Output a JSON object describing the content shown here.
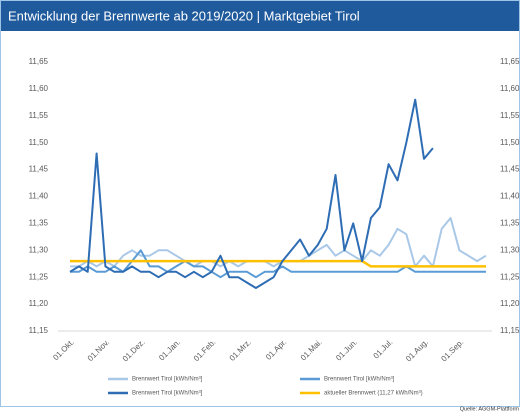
{
  "chart_data": {
    "type": "line",
    "title": "Entwicklung der Brennwerte ab 2019/2020 | Marktgebiet Tirol",
    "source": "Quelle: AGGM-Plattform",
    "categories": [
      "01.Okt.",
      null,
      null,
      null,
      "01.Nov.",
      null,
      null,
      null,
      "01.Dez.",
      null,
      null,
      null,
      "01.Jan.",
      null,
      null,
      null,
      "01.Feb.",
      null,
      null,
      null,
      "01.Mrz.",
      null,
      null,
      null,
      "01.Apr.",
      null,
      null,
      null,
      "01.Mai.",
      null,
      null,
      null,
      "01.Jun.",
      null,
      null,
      null,
      "01.Jul.",
      null,
      null,
      null,
      "01.Aug.",
      null,
      null,
      null,
      "01.Sep.",
      null,
      null,
      null
    ],
    "series": [
      {
        "name": "Brennwert Tirol [kWh/Nm³]",
        "color": "#a9c8e8",
        "values": [
          11.27,
          11.27,
          11.28,
          11.27,
          11.28,
          11.27,
          11.29,
          11.3,
          11.29,
          11.29,
          11.3,
          11.3,
          11.29,
          11.28,
          11.27,
          11.28,
          11.28,
          11.27,
          11.28,
          11.27,
          11.28,
          11.28,
          11.28,
          11.27,
          11.28,
          11.28,
          11.28,
          11.29,
          11.3,
          11.31,
          11.29,
          11.3,
          11.29,
          11.28,
          11.3,
          11.29,
          11.31,
          11.34,
          11.33,
          11.27,
          11.29,
          11.27,
          11.34,
          11.36,
          11.3,
          11.29,
          11.28,
          11.29
        ]
      },
      {
        "name": "Brennwert Tirol [kWh/Nm³]",
        "color": "#5b9bd5",
        "values": [
          11.26,
          11.26,
          11.27,
          11.26,
          11.26,
          11.27,
          11.26,
          11.28,
          11.3,
          11.27,
          11.27,
          11.26,
          11.27,
          11.28,
          11.27,
          11.27,
          11.26,
          11.25,
          11.26,
          11.26,
          11.26,
          11.25,
          11.26,
          11.26,
          11.27,
          11.26,
          11.26,
          11.26,
          11.26,
          11.26,
          11.26,
          11.26,
          11.26,
          11.26,
          11.26,
          11.26,
          11.26,
          11.26,
          11.27,
          11.26,
          11.26,
          11.26,
          11.26,
          11.26,
          11.26,
          11.26,
          11.26,
          11.26
        ]
      },
      {
        "name": "aktueller Brennwert (11,27 kWh/Nm³)",
        "color": "#ffc000",
        "values": [
          11.28,
          11.28,
          11.28,
          11.28,
          11.28,
          11.28,
          11.28,
          11.28,
          11.28,
          11.28,
          11.28,
          11.28,
          11.28,
          11.28,
          11.28,
          11.28,
          11.28,
          11.28,
          11.28,
          11.28,
          11.28,
          11.28,
          11.28,
          11.28,
          11.28,
          11.28,
          11.28,
          11.28,
          11.28,
          11.28,
          11.28,
          11.28,
          11.28,
          11.28,
          11.27,
          11.27,
          11.27,
          11.27,
          11.27,
          11.27,
          11.27,
          11.27,
          11.27,
          11.27,
          11.27,
          11.27,
          11.27,
          11.27
        ]
      },
      {
        "name": "Brennwert Tirol [kWh/Nm³]",
        "color": "#2e6db4",
        "values": [
          11.26,
          11.27,
          11.26,
          11.48,
          11.27,
          11.26,
          11.26,
          11.27,
          11.26,
          11.26,
          11.25,
          11.26,
          11.26,
          11.25,
          11.26,
          11.25,
          11.26,
          11.29,
          11.25,
          11.25,
          11.24,
          11.23,
          11.24,
          11.25,
          11.28,
          11.3,
          11.32,
          11.29,
          11.31,
          11.34,
          11.44,
          11.3,
          11.35,
          11.28,
          11.36,
          11.38,
          11.46,
          11.43,
          11.5,
          11.58,
          11.47,
          11.49,
          null,
          null,
          null,
          null,
          null,
          null
        ]
      }
    ],
    "ylim": [
      11.15,
      11.65
    ],
    "yticks": [
      {
        "value": 11.15,
        "label": "11,15"
      },
      {
        "value": 11.2,
        "label": "11,20"
      },
      {
        "value": 11.25,
        "label": "11,25"
      },
      {
        "value": 11.3,
        "label": "11,30"
      },
      {
        "value": 11.35,
        "label": "11,35"
      },
      {
        "value": 11.4,
        "label": "11,40"
      },
      {
        "value": 11.45,
        "label": "11,45"
      },
      {
        "value": 11.5,
        "label": "11,50"
      },
      {
        "value": 11.55,
        "label": "11,55"
      },
      {
        "value": 11.6,
        "label": "11,60"
      },
      {
        "value": 11.65,
        "label": "11,65"
      }
    ],
    "y2lim": [
      11.15,
      11.65
    ],
    "y2ticks": [
      {
        "value": 11.15,
        "label": "11,15"
      },
      {
        "value": 11.2,
        "label": "11,20"
      },
      {
        "value": 11.25,
        "label": "11,25"
      },
      {
        "value": 11.3,
        "label": "11,30"
      },
      {
        "value": 11.35,
        "label": "11,35"
      },
      {
        "value": 11.4,
        "label": "11,40"
      },
      {
        "value": 11.45,
        "label": "11,45"
      },
      {
        "value": 11.5,
        "label": "11,50"
      },
      {
        "value": 11.55,
        "label": "11,55"
      },
      {
        "value": 11.6,
        "label": "11,60"
      },
      {
        "value": 11.65,
        "label": "11,65"
      }
    ],
    "grid": false
  }
}
